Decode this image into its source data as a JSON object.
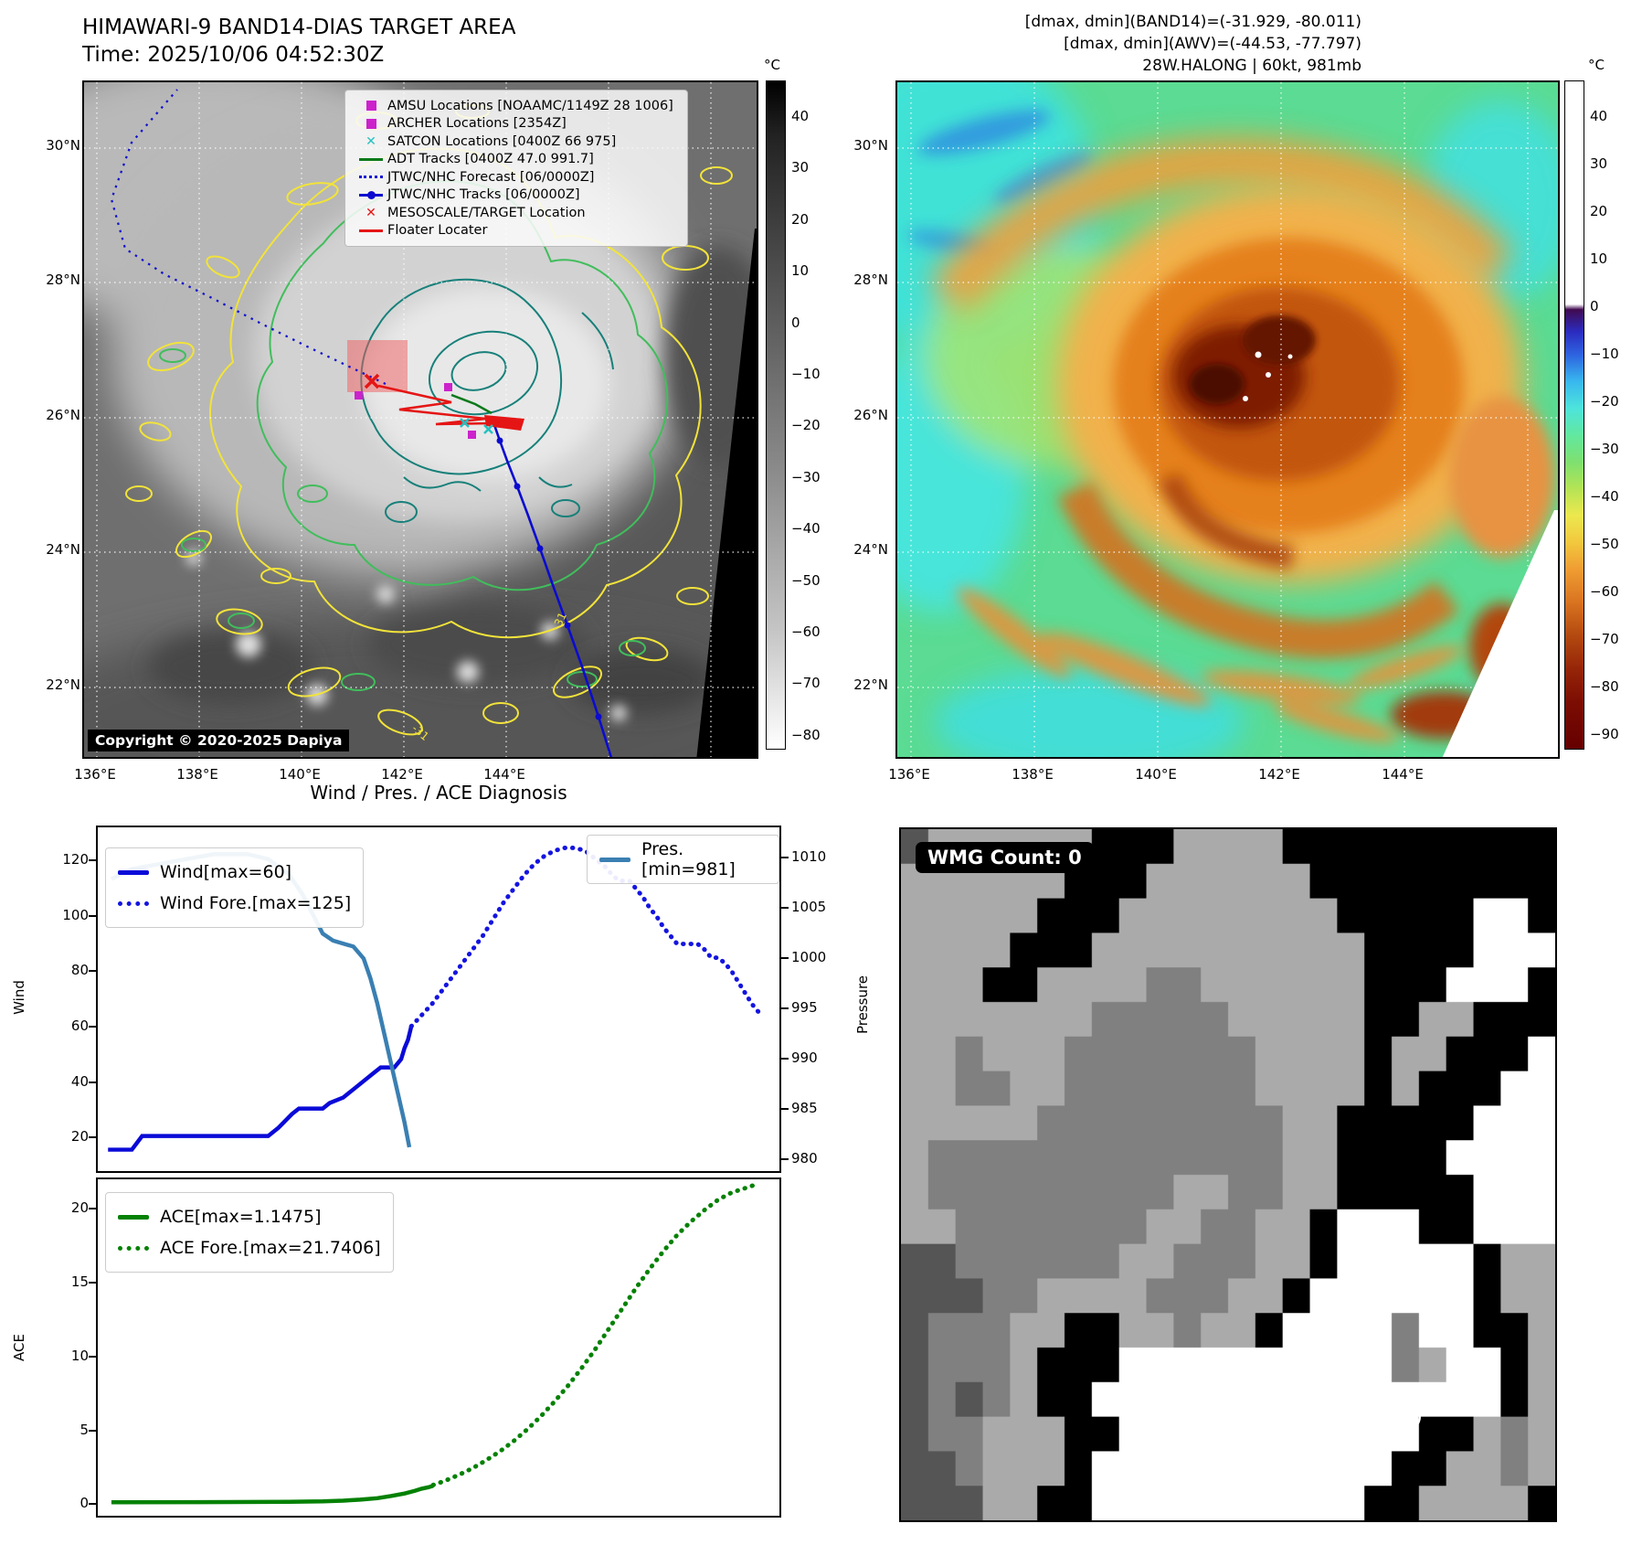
{
  "header": {
    "title": "HIMAWARI-9 BAND14-DIAS TARGET AREA",
    "time": "Time: 2025/10/06 04:52:30Z",
    "info_line1": "[dmax, dmin](BAND14)=(-31.929, -80.011)",
    "info_line2": "[dmax, dmin](AWV)=(-44.53, -77.797)",
    "info_line3": "28W.HALONG | 60kt, 981mb"
  },
  "left_map": {
    "legend": [
      {
        "label": "AMSU Locations [NOAAMC/1149Z 28 1006]"
      },
      {
        "label": "ARCHER Locations [2354Z]"
      },
      {
        "label": "SATCON Locations [0400Z 66 975]"
      },
      {
        "label": "ADT Tracks [0400Z 47.0 991.7]"
      },
      {
        "label": "JTWC/NHC Forecast [06/0000Z]"
      },
      {
        "label": "JTWC/NHC Tracks [06/0000Z]"
      },
      {
        "label": "MESOSCALE/TARGET Location"
      },
      {
        "label": "Floater Locater"
      }
    ],
    "copyright": "Copyright © 2020-2025 Dapiya",
    "contour_label": "-31",
    "lat_ticks": [
      "30°N",
      "28°N",
      "26°N",
      "24°N",
      "22°N"
    ],
    "lon_ticks": [
      "136°E",
      "138°E",
      "140°E",
      "142°E",
      "144°E"
    ],
    "colorbar": {
      "unit": "°C",
      "ticks": [
        "40",
        "30",
        "20",
        "10",
        "0",
        "−10",
        "−20",
        "−30",
        "−40",
        "−50",
        "−60",
        "−70",
        "−80"
      ]
    }
  },
  "right_map": {
    "lat_ticks": [
      "30°N",
      "28°N",
      "26°N",
      "24°N",
      "22°N"
    ],
    "lon_ticks": [
      "136°E",
      "138°E",
      "140°E",
      "142°E",
      "144°E"
    ],
    "colorbar": {
      "unit": "°C",
      "ticks": [
        "40",
        "30",
        "20",
        "10",
        "0",
        "−10",
        "−20",
        "−30",
        "−40",
        "−50",
        "−60",
        "−70",
        "−80",
        "−90"
      ]
    }
  },
  "charts": {
    "title": "Wind / Pres. / ACE Diagnosis",
    "wind_ylabel": "Wind",
    "pressure_ylabel": "Pressure",
    "ace_ylabel": "ACE"
  },
  "wmg": {
    "label": "WMG Count: 0",
    "palette": {
      "K": "#000000",
      "D": "#555555",
      "M": "#808080",
      "G": "#aaaaaa",
      "W": "#ffffff"
    },
    "bitmap": [
      "DGGGGGGKKKGGGGKKKKKKKKKK",
      "GGGGGGKKKGGGGGGKKKKKKKKK",
      "GGGGGKKKGGGGGGGGKKKKKWWK",
      "GGGGKKKGGGGGGGGGGKKKKWWW",
      "GGGKKGGGGMMGGGGGGKKKWWWK",
      "GGGGGGGMMMMMGGGGGKKGGKKK",
      "GGMGGGMMMMMMMGGGGKGGKKKW",
      "GGMMGGMMMMMMMGGGGKGKKKWW",
      "GGGGGMMMMMMMMMGGKKKKKWWW",
      "GMMMMMMMMMMMMMGGKKKKWWWW",
      "GMMMMMMMMMGGMMGGKKKKKWWW",
      "GGMMMMMMMGGMMGGKWWWKKWWW",
      "DDMMMMMMGGMMMGGKWWWWWKGG",
      "DDDMMGGGGMMMGGKWWWWWWKGG",
      "DMMMGGKKGGMGGKWWWWMWWKKG",
      "DMMMGKKKWWWWWWWWWWMGWWKG",
      "DMDMGKKWWWWWWWWWWWWWWWKG",
      "DMMGGGKKWWWWWWWWWWWKKGMG",
      "DDMGGGKWWWWWWWWWWWKKGGMG",
      "DDDGGKKWWWWWWWWWWKKGGGGK"
    ]
  },
  "chart_data": [
    {
      "type": "line",
      "title": "Wind / Pres. / ACE Diagnosis",
      "ylabel_left": "Wind",
      "ylabel_right": "Pressure",
      "xlabel": "",
      "grid": false,
      "yticks_left": [
        20,
        40,
        60,
        80,
        100,
        120
      ],
      "ylim_left": [
        7.2,
        132.5
      ],
      "yticks_right": [
        1010,
        1005,
        1000,
        995,
        990,
        985,
        980
      ],
      "ylim_right": [
        978.6,
        1013.2
      ],
      "series": [
        {
          "name": "Wind[max=60]",
          "color": "#0a0ad8",
          "style": "solid",
          "axis": "left",
          "points": [
            [
              0.015,
              15
            ],
            [
              0.05,
              15
            ],
            [
              0.065,
              20
            ],
            [
              0.25,
              20
            ],
            [
              0.265,
              23
            ],
            [
              0.285,
              28
            ],
            [
              0.295,
              30
            ],
            [
              0.33,
              30
            ],
            [
              0.34,
              32
            ],
            [
              0.36,
              34
            ],
            [
              0.375,
              37
            ],
            [
              0.39,
              40
            ],
            [
              0.405,
              43
            ],
            [
              0.415,
              45
            ],
            [
              0.435,
              45
            ],
            [
              0.445,
              48
            ],
            [
              0.45,
              52
            ],
            [
              0.455,
              55
            ],
            [
              0.46,
              60
            ]
          ]
        },
        {
          "name": "Wind Fore.[max=125]",
          "color": "#1414e0",
          "style": "dotted",
          "axis": "left",
          "points": [
            [
              0.46,
              60
            ],
            [
              0.475,
              64
            ],
            [
              0.49,
              68
            ],
            [
              0.505,
              73
            ],
            [
              0.52,
              78
            ],
            [
              0.535,
              83
            ],
            [
              0.55,
              88
            ],
            [
              0.565,
              93
            ],
            [
              0.58,
              99
            ],
            [
              0.595,
              105
            ],
            [
              0.61,
              110
            ],
            [
              0.625,
              115
            ],
            [
              0.64,
              119
            ],
            [
              0.655,
              122
            ],
            [
              0.67,
              124
            ],
            [
              0.685,
              125
            ],
            [
              0.7,
              125
            ],
            [
              0.715,
              124
            ],
            [
              0.73,
              121
            ],
            [
              0.745,
              118
            ],
            [
              0.755,
              115
            ],
            [
              0.765,
              113
            ],
            [
              0.78,
              113
            ],
            [
              0.79,
              110
            ],
            [
              0.8,
              107
            ],
            [
              0.81,
              103
            ],
            [
              0.82,
              100
            ],
            [
              0.83,
              96
            ],
            [
              0.84,
              93
            ],
            [
              0.85,
              90
            ],
            [
              0.865,
              90
            ],
            [
              0.88,
              90
            ],
            [
              0.89,
              88
            ],
            [
              0.9,
              85
            ],
            [
              0.91,
              85
            ],
            [
              0.92,
              83
            ],
            [
              0.93,
              80
            ],
            [
              0.94,
              76
            ],
            [
              0.95,
              72
            ],
            [
              0.96,
              68
            ],
            [
              0.97,
              65
            ]
          ]
        },
        {
          "name": "Pres.[min=981]",
          "color": "#3a7fb2",
          "style": "solid",
          "axis": "right",
          "points": [
            [
              0.02,
              1008
            ],
            [
              0.05,
              1009
            ],
            [
              0.09,
              1009.5
            ],
            [
              0.13,
              1010
            ],
            [
              0.17,
              1010.5
            ],
            [
              0.22,
              1010.5
            ],
            [
              0.25,
              1010
            ],
            [
              0.28,
              1008.5
            ],
            [
              0.3,
              1006.5
            ],
            [
              0.315,
              1004.5
            ],
            [
              0.33,
              1002.5
            ],
            [
              0.345,
              1001.8
            ],
            [
              0.375,
              1001.2
            ],
            [
              0.39,
              1000
            ],
            [
              0.4,
              998
            ],
            [
              0.41,
              995.5
            ],
            [
              0.42,
              992.5
            ],
            [
              0.43,
              989.5
            ],
            [
              0.44,
              986.5
            ],
            [
              0.45,
              983.5
            ],
            [
              0.457,
              981
            ]
          ]
        }
      ]
    },
    {
      "type": "line",
      "ylabel_left": "ACE",
      "xlabel": "",
      "grid": false,
      "yticks_left": [
        0,
        5,
        10,
        15,
        20
      ],
      "ylim_left": [
        -0.9,
        22.1
      ],
      "series": [
        {
          "name": "ACE[max=1.1475]",
          "color": "#048104",
          "style": "solid",
          "axis": "left",
          "points": [
            [
              0.02,
              0.02
            ],
            [
              0.15,
              0.03
            ],
            [
              0.28,
              0.05
            ],
            [
              0.33,
              0.08
            ],
            [
              0.36,
              0.13
            ],
            [
              0.385,
              0.2
            ],
            [
              0.41,
              0.3
            ],
            [
              0.43,
              0.45
            ],
            [
              0.45,
              0.62
            ],
            [
              0.465,
              0.8
            ],
            [
              0.475,
              0.95
            ],
            [
              0.485,
              1.05
            ],
            [
              0.492,
              1.1475
            ]
          ]
        },
        {
          "name": "ACE Fore.[max=21.7406]",
          "color": "#048104",
          "style": "dotted",
          "axis": "left",
          "points": [
            [
              0.492,
              1.2
            ],
            [
              0.51,
              1.5
            ],
            [
              0.53,
              1.9
            ],
            [
              0.55,
              2.35
            ],
            [
              0.57,
              2.9
            ],
            [
              0.59,
              3.5
            ],
            [
              0.61,
              4.2
            ],
            [
              0.63,
              5.0
            ],
            [
              0.65,
              5.9
            ],
            [
              0.67,
              6.9
            ],
            [
              0.69,
              8.0
            ],
            [
              0.71,
              9.2
            ],
            [
              0.73,
              10.5
            ],
            [
              0.75,
              11.9
            ],
            [
              0.77,
              13.3
            ],
            [
              0.79,
              14.7
            ],
            [
              0.81,
              16.0
            ],
            [
              0.83,
              17.2
            ],
            [
              0.85,
              18.3
            ],
            [
              0.87,
              19.2
            ],
            [
              0.89,
              20.0
            ],
            [
              0.91,
              20.7
            ],
            [
              0.93,
              21.2
            ],
            [
              0.95,
              21.5
            ],
            [
              0.965,
              21.74
            ]
          ]
        }
      ]
    }
  ]
}
